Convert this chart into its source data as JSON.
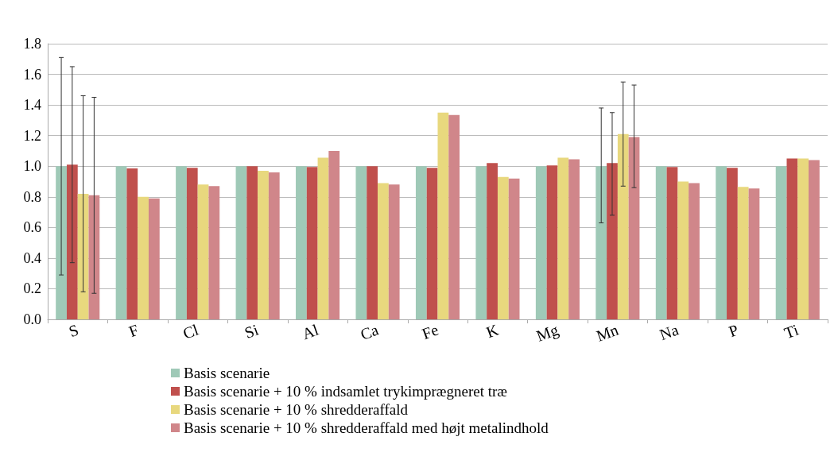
{
  "chart_data": {
    "type": "bar",
    "categories": [
      "S",
      "F",
      "Cl",
      "Si",
      "Al",
      "Ca",
      "Fe",
      "K",
      "Mg",
      "Mn",
      "Na",
      "P",
      "Ti"
    ],
    "series": [
      {
        "name": "Basis scenarie",
        "color": "#9fc9b7",
        "values": [
          1.0,
          1.0,
          1.0,
          1.0,
          1.0,
          1.0,
          1.0,
          1.0,
          1.0,
          1.0,
          1.0,
          1.0,
          1.0
        ],
        "errors": [
          [
            0.29,
            1.71
          ],
          null,
          null,
          null,
          null,
          null,
          null,
          null,
          null,
          [
            0.63,
            1.38
          ],
          null,
          null,
          null
        ]
      },
      {
        "name": "Basis scenarie + 10 % indsamlet trykimprægneret træ",
        "color": "#c0504d",
        "values": [
          1.01,
          0.985,
          0.99,
          1.0,
          0.995,
          1.0,
          0.99,
          1.02,
          1.005,
          1.02,
          0.995,
          0.99,
          1.05
        ],
        "errors": [
          [
            0.37,
            1.65
          ],
          null,
          null,
          null,
          null,
          null,
          null,
          null,
          null,
          [
            0.68,
            1.35
          ],
          null,
          null,
          null
        ]
      },
      {
        "name": "Basis scenarie + 10 % shredderaffald",
        "color": "#e8d87e",
        "values": [
          0.82,
          0.8,
          0.88,
          0.97,
          1.055,
          0.89,
          1.35,
          0.93,
          1.055,
          1.21,
          0.9,
          0.865,
          1.05
        ],
        "errors": [
          [
            0.18,
            1.46
          ],
          null,
          null,
          null,
          null,
          null,
          null,
          null,
          null,
          [
            0.87,
            1.55
          ],
          null,
          null,
          null
        ]
      },
      {
        "name": "Basis scenarie + 10 % shredderaffald med højt metalindhold",
        "color": "#d0868a",
        "values": [
          0.81,
          0.79,
          0.87,
          0.96,
          1.1,
          0.88,
          1.335,
          0.92,
          1.045,
          1.19,
          0.89,
          0.855,
          1.04
        ],
        "errors": [
          [
            0.17,
            1.45
          ],
          null,
          null,
          null,
          null,
          null,
          null,
          null,
          null,
          [
            0.86,
            1.53
          ],
          null,
          null,
          null
        ]
      }
    ],
    "ylim": [
      0,
      1.8
    ],
    "yticks": [
      {
        "value": 0,
        "label": "0.0"
      },
      0.2,
      0.4,
      0.6,
      0.8,
      {
        "value": 1,
        "label": "1.0"
      },
      1.2,
      1.4,
      1.6,
      1.8
    ],
    "grid": "y",
    "legend": "bottom"
  }
}
